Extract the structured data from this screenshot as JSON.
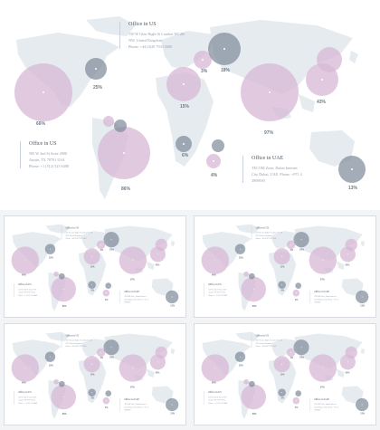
{
  "offices": [
    {
      "title": "Office in US",
      "lines": [
        "150 W Glen Right St London WC2B",
        "NW, United Kingdom",
        "Phone: +44 (0)20 7933 5600"
      ]
    },
    {
      "title": "Office in US",
      "lines": [
        "500 W 2nd St Suite 2900",
        "Austin, TX 78701 USA",
        "Phone: +1 (512) 523 6488"
      ]
    },
    {
      "title": "Office in UAE",
      "lines": [
        "TECOM Zone, Dubai Internet",
        "City Dubai, UAE. Phone: +971 4",
        "3909000"
      ]
    }
  ],
  "bubbles": [
    {
      "value": "66%",
      "color": "pink"
    },
    {
      "value": "25%",
      "color": "gray"
    },
    {
      "value": "3%",
      "color": "pink"
    },
    {
      "value": "18%",
      "color": "gray"
    },
    {
      "value": "15%",
      "color": "pink"
    },
    {
      "value": "97%",
      "color": "pink"
    },
    {
      "value": "43%",
      "color": "pink"
    },
    {
      "value": "6%",
      "color": "gray"
    },
    {
      "value": "4%",
      "color": "pink"
    },
    {
      "value": "86%",
      "color": "pink"
    },
    {
      "value": "13%",
      "color": "gray"
    }
  ],
  "colors": {
    "pink": "#d7b8d6",
    "gray": "#7d8a98",
    "land": "#e6ebf0"
  }
}
